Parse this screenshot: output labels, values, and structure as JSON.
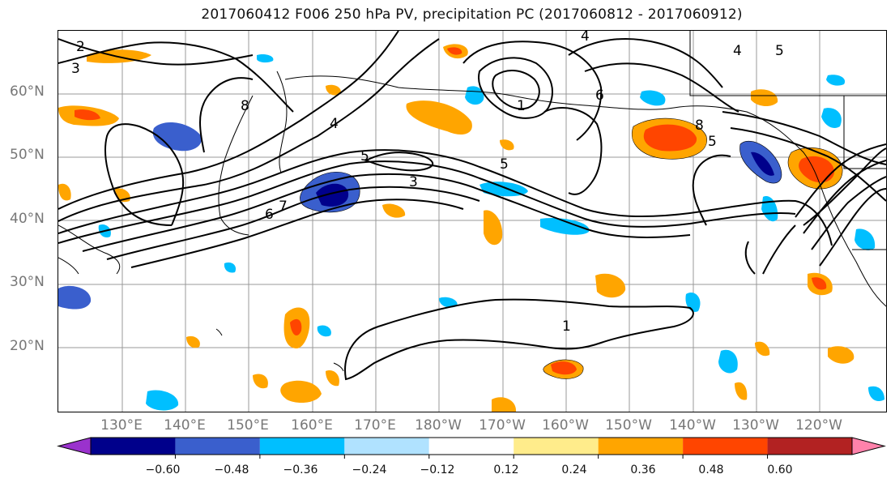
{
  "title": "2017060412 F006 250 hPa PV, precipitation PC (2017060812 - 2017060912)",
  "lat_labels": [
    "60°N",
    "50°N",
    "40°N",
    "30°N",
    "20°N"
  ],
  "lon_labels": [
    "130°E",
    "140°E",
    "150°E",
    "160°E",
    "170°E",
    "180°W",
    "170°W",
    "160°W",
    "150°W",
    "140°W",
    "130°W",
    "120°W"
  ],
  "colorbar": {
    "tick_labels": [
      "−0.60",
      "−0.48",
      "−0.36",
      "−0.24",
      "−0.12",
      "0.12",
      "0.24",
      "0.36",
      "0.48",
      "0.60"
    ],
    "colors": [
      "#9a32cd",
      "#00008b",
      "#3a5fcd",
      "#00bfff",
      "#b0e2ff",
      "#ffffff",
      "#ffec8b",
      "#ffa500",
      "#ff4500",
      "#b22222",
      "#ff82ab"
    ]
  },
  "contour_labels": [
    "2",
    "3",
    "8",
    "4",
    "6",
    "1",
    "5",
    "7",
    "1",
    "4",
    "6",
    "8",
    "5",
    "5",
    "3",
    "4",
    "5"
  ]
}
